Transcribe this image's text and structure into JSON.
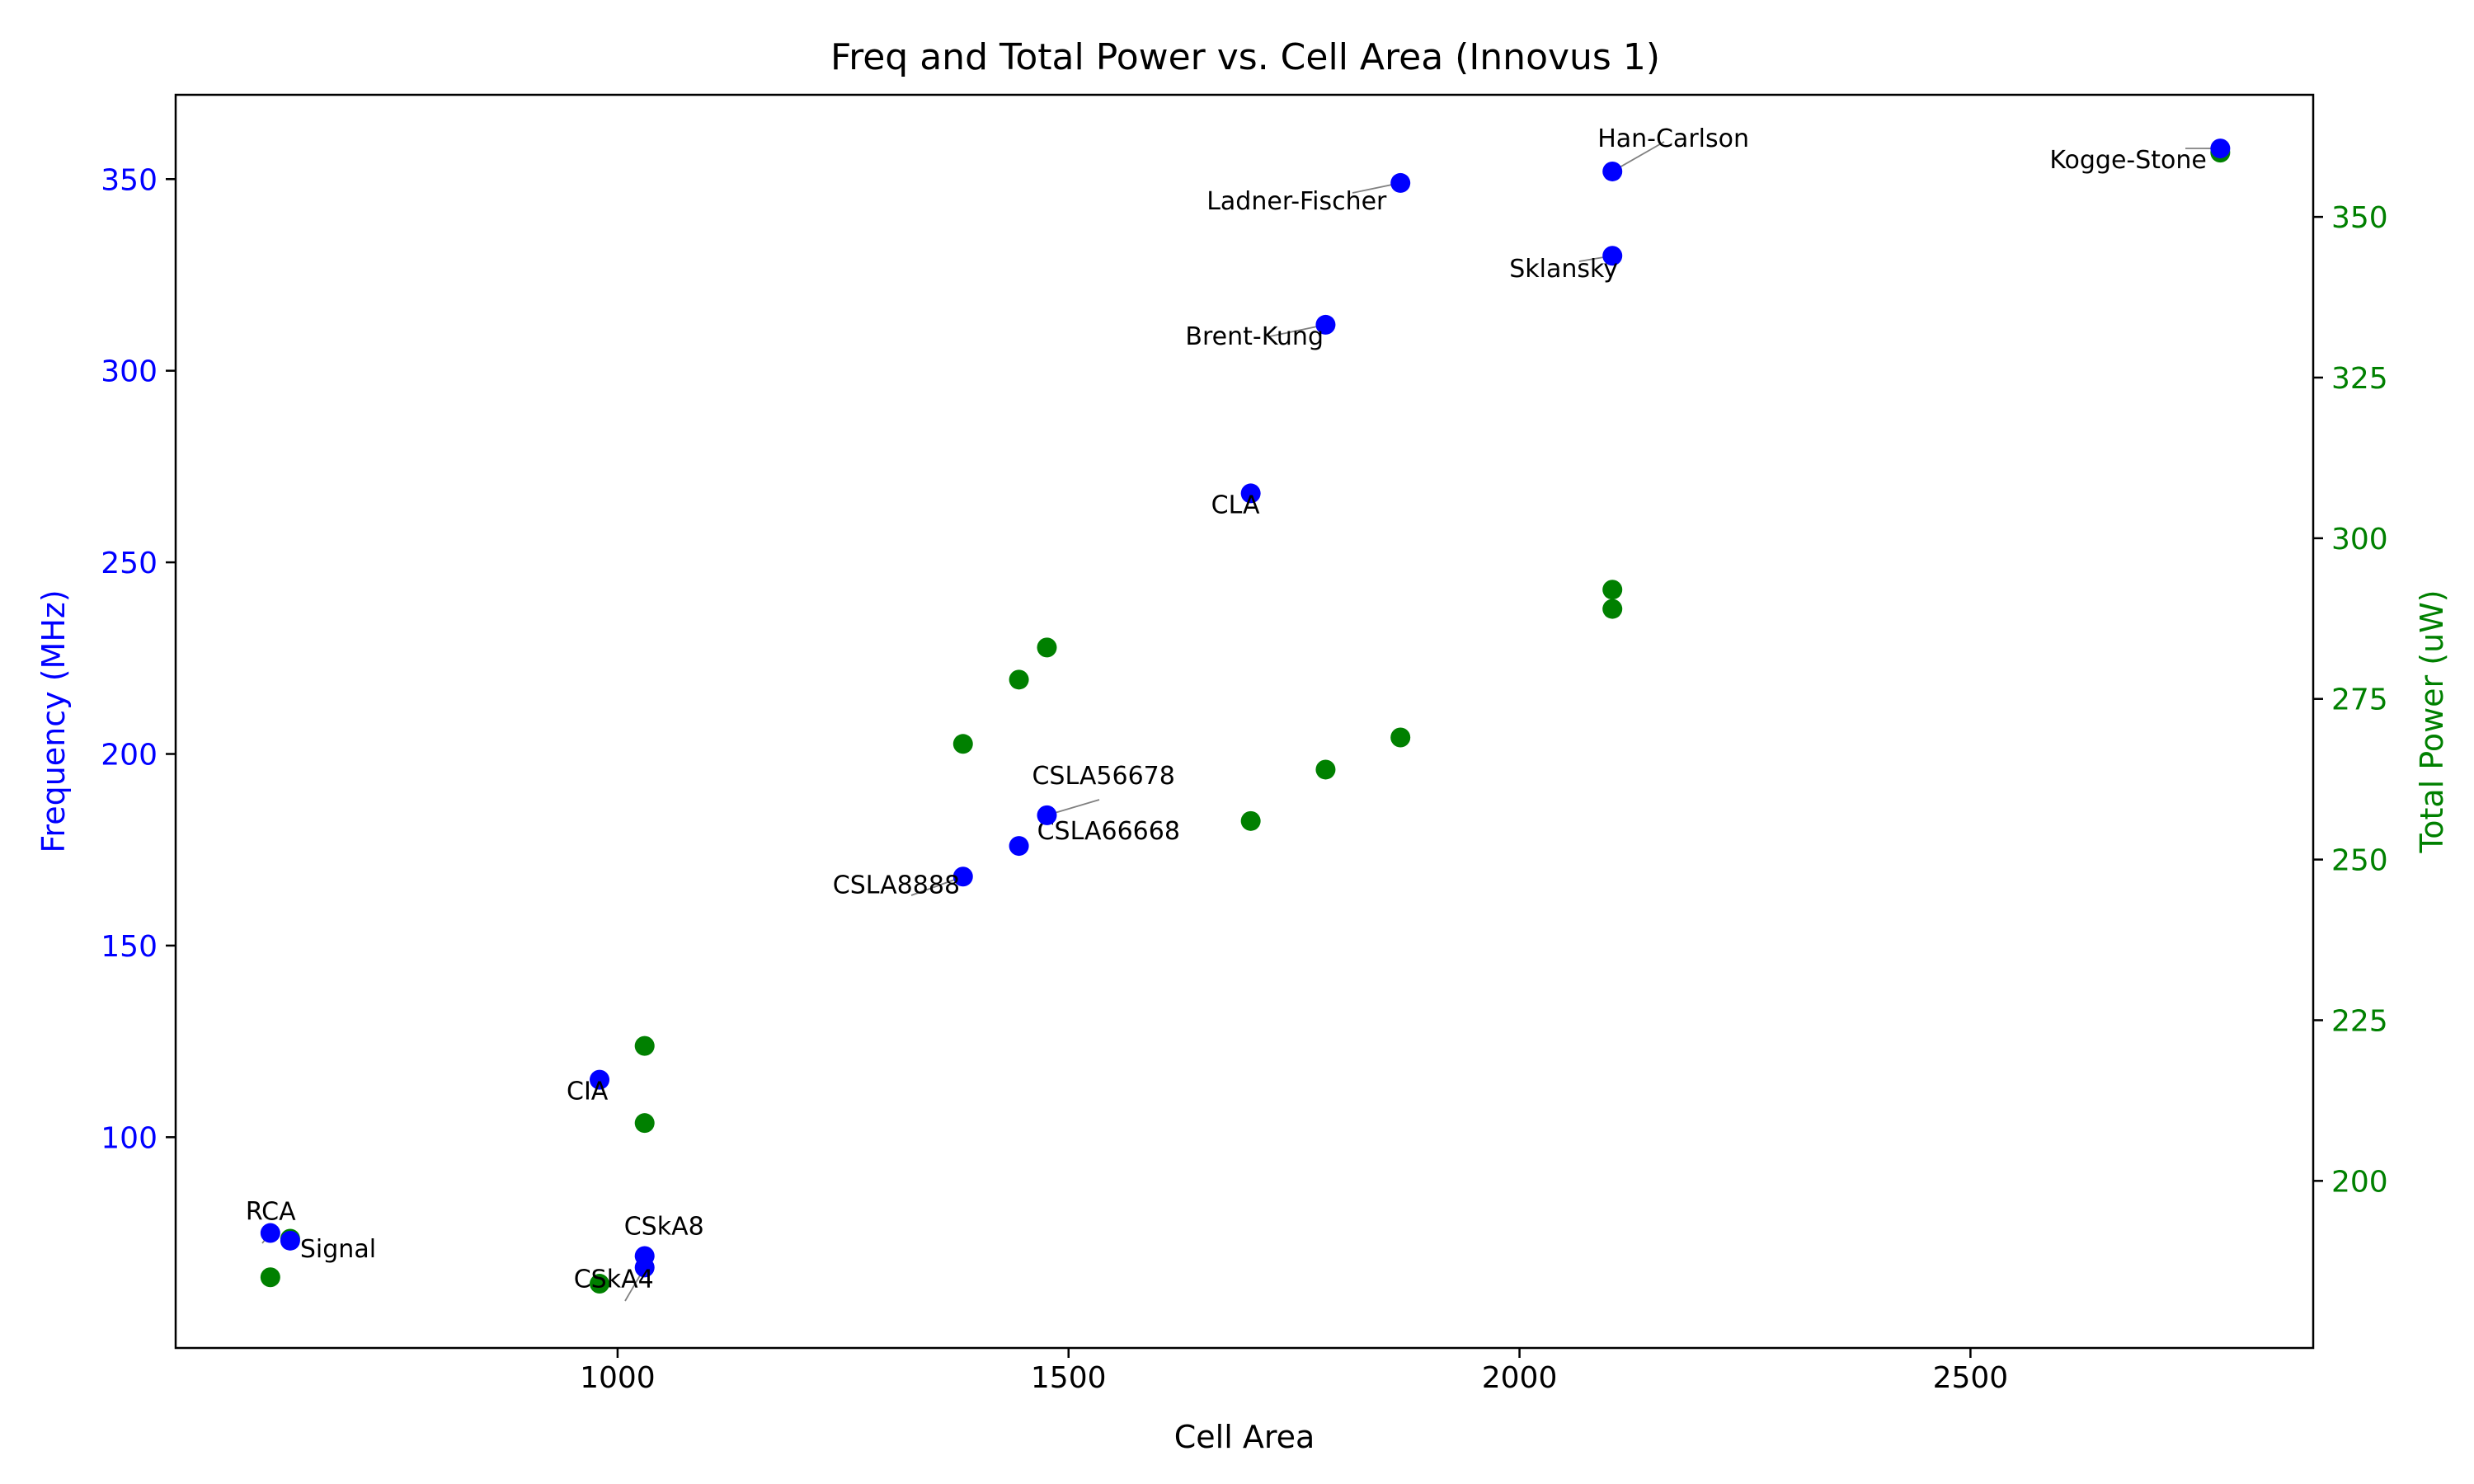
{
  "chart_data": {
    "type": "scatter",
    "title": "Freq and Total Power vs. Cell Area (Innovus 1)",
    "xlabel": "Cell Area",
    "ylabel_left": "Frequency (MHz)",
    "ylabel_right": "Total Power (uW)",
    "xlim": [
      510,
      2880
    ],
    "ylim_left": [
      45,
      372
    ],
    "ylim_right": [
      174,
      369
    ],
    "xticks": [
      1000,
      1500,
      2000,
      2500
    ],
    "yticks_left": [
      100,
      150,
      200,
      250,
      300,
      350
    ],
    "yticks_right": [
      200,
      225,
      250,
      275,
      300,
      325,
      350
    ],
    "colors": {
      "frequency": "#0000ff",
      "power": "#008000",
      "axes": "#000000",
      "arrow": "#808080"
    },
    "frequency_points": [
      {
        "label": "RCA",
        "x": 615,
        "y": 75
      },
      {
        "label": "Signal",
        "x": 637,
        "y": 73
      },
      {
        "label": "CIA",
        "x": 980,
        "y": 115
      },
      {
        "label": "CSkA8",
        "x": 1030,
        "y": 69
      },
      {
        "label": "CSkA4",
        "x": 1030,
        "y": 66
      },
      {
        "label": "CSLA8888",
        "x": 1383,
        "y": 168
      },
      {
        "label": "CSLA66668",
        "x": 1445,
        "y": 176
      },
      {
        "label": "CSLA56678",
        "x": 1476,
        "y": 184
      },
      {
        "label": "CLA",
        "x": 1702,
        "y": 268
      },
      {
        "label": "Brent-Kung",
        "x": 1785,
        "y": 312
      },
      {
        "label": "Ladner-Fischer",
        "x": 1868,
        "y": 349
      },
      {
        "label": "Sklansky",
        "x": 2103,
        "y": 330
      },
      {
        "label": "Han-Carlson",
        "x": 2103,
        "y": 352
      },
      {
        "label": "Kogge-Stone",
        "x": 2777,
        "y": 358
      }
    ],
    "power_points": [
      {
        "x": 615,
        "y": 185
      },
      {
        "x": 637,
        "y": 191
      },
      {
        "x": 980,
        "y": 184
      },
      {
        "x": 1030,
        "y": 221
      },
      {
        "x": 1030,
        "y": 209
      },
      {
        "x": 1383,
        "y": 268
      },
      {
        "x": 1445,
        "y": 278
      },
      {
        "x": 1476,
        "y": 283
      },
      {
        "x": 1702,
        "y": 256
      },
      {
        "x": 1785,
        "y": 264
      },
      {
        "x": 1868,
        "y": 269
      },
      {
        "x": 2103,
        "y": 292
      },
      {
        "x": 2103,
        "y": 289
      },
      {
        "x": 2777,
        "y": 360
      }
    ]
  }
}
